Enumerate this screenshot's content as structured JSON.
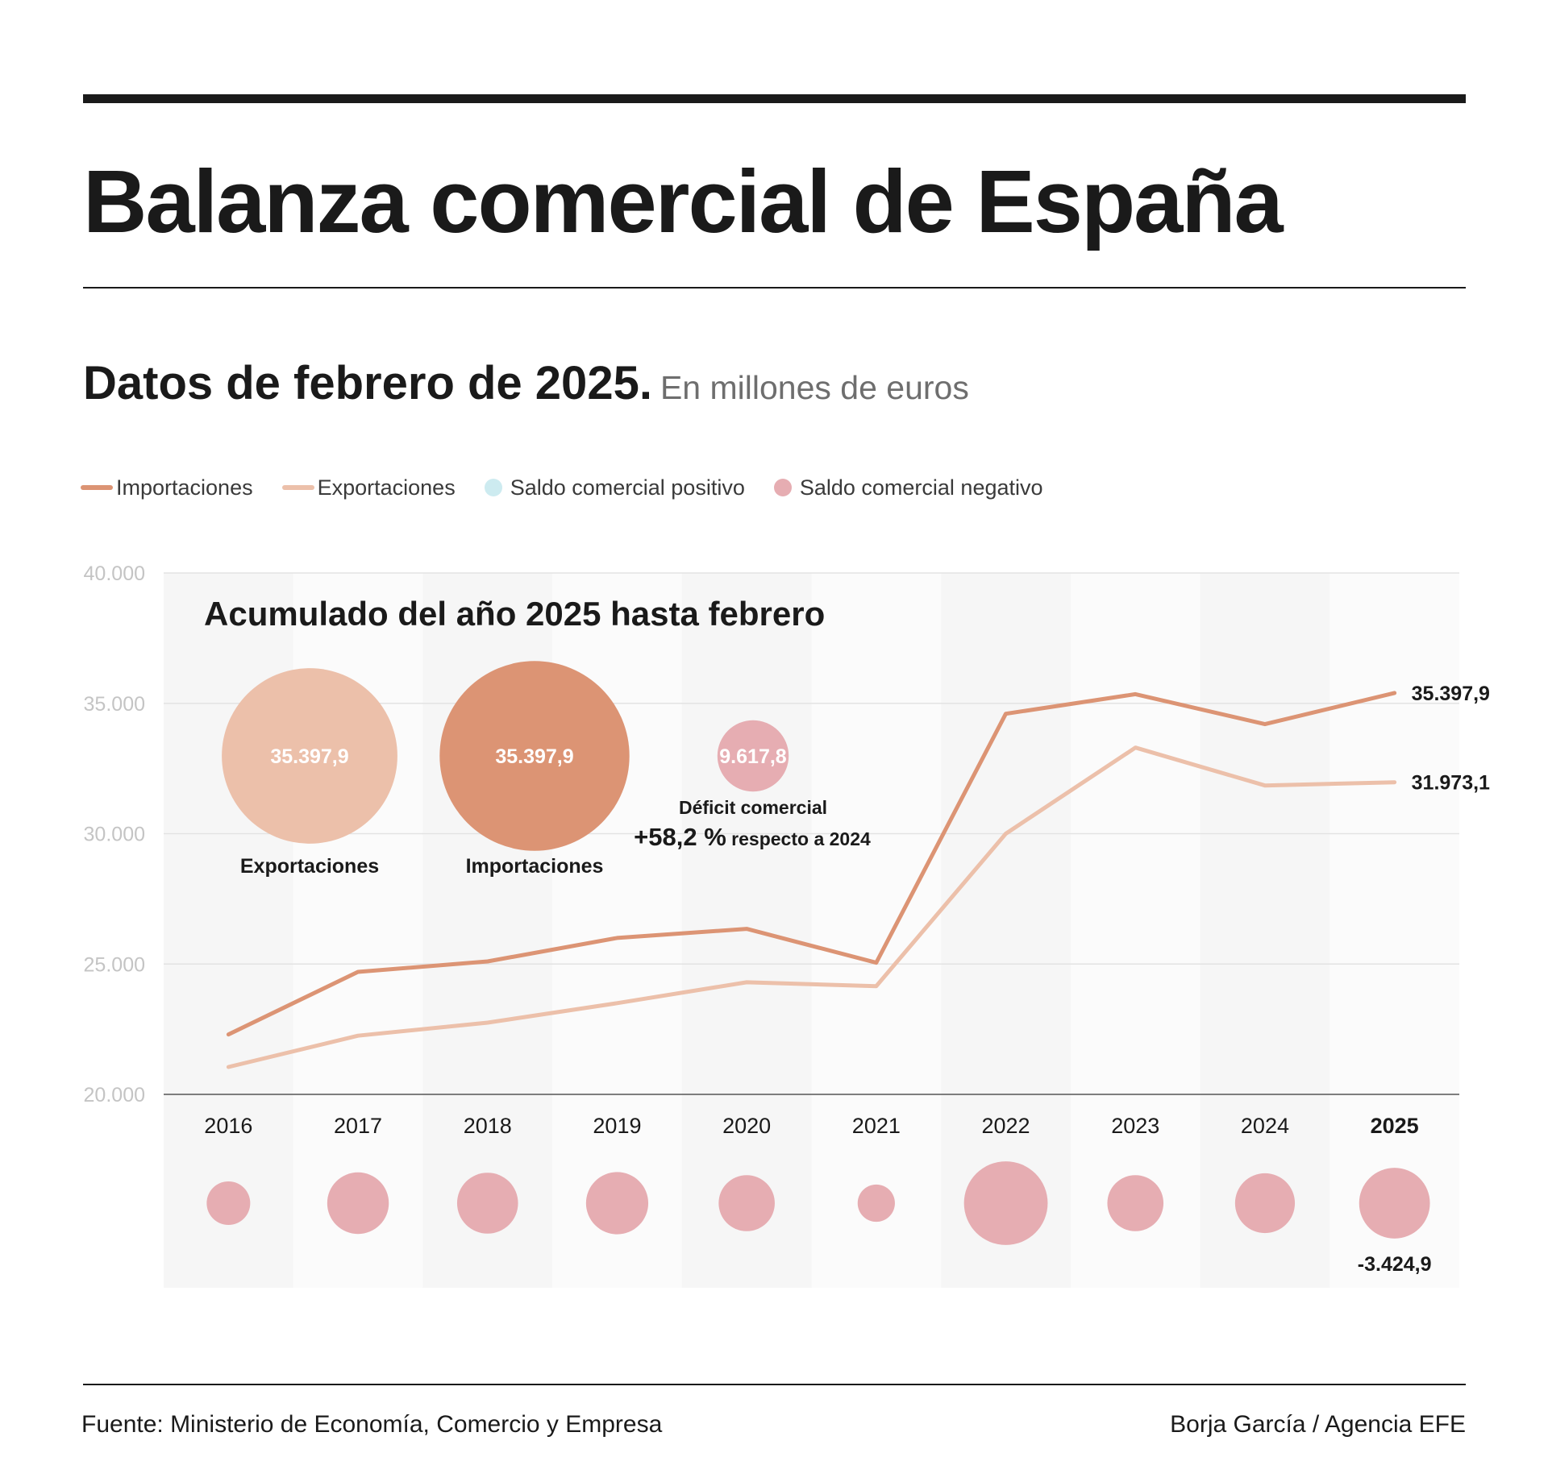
{
  "title": "Balanza comercial de España",
  "subtitle": "Datos de febrero de 2025.",
  "units": "En millones de euros",
  "legend": [
    {
      "label": "Importaciones",
      "color": "#dc9474",
      "kind": "line"
    },
    {
      "label": "Exportaciones",
      "color": "#ecc0aa",
      "kind": "line"
    },
    {
      "label": "Saldo comercial positivo",
      "color": "#cdebf0",
      "kind": "dot"
    },
    {
      "label": "Saldo comercial negativo",
      "color": "#e6adb2",
      "kind": "dot"
    }
  ],
  "summary": {
    "title": "Acumulado del año 2025 hasta febrero",
    "exports": {
      "value": 35397.9,
      "display": "35.397,9",
      "label": "Exportaciones",
      "color": "#ecc0aa"
    },
    "imports": {
      "value": 35397.9,
      "display": "35.397,9",
      "label": "Importaciones",
      "color": "#dc9474"
    },
    "deficit": {
      "value": 9617.8,
      "display": "9.617,8",
      "label": "Déficit comercial",
      "change": "+58,2 %",
      "change_note": "respecto a 2024",
      "color": "#e6adb2"
    }
  },
  "chart_data": {
    "type": "line",
    "categories": [
      "2016",
      "2017",
      "2018",
      "2019",
      "2020",
      "2021",
      "2022",
      "2023",
      "2024",
      "2025"
    ],
    "highlight_category": "2025",
    "series": [
      {
        "name": "Importaciones",
        "color": "#dc9474",
        "values": [
          22300,
          24700,
          25100,
          26000,
          26350,
          25050,
          34600,
          35350,
          34200,
          35397.9
        ]
      },
      {
        "name": "Exportaciones",
        "color": "#ecc0aa",
        "values": [
          21050,
          22250,
          22750,
          23500,
          24300,
          24150,
          30000,
          33300,
          31850,
          31973.1
        ]
      }
    ],
    "end_labels": [
      "35.397,9",
      "31.973,1"
    ],
    "yticks": [
      20000,
      25000,
      30000,
      35000,
      40000
    ],
    "ytick_labels": [
      "20.000",
      "25.000",
      "30.000",
      "35.000",
      "40.000"
    ],
    "ylim": [
      20000,
      40000
    ],
    "grid": true,
    "balance": {
      "name": "Saldo comercial negativo",
      "color": "#e6adb2",
      "values": [
        -1300,
        -2600,
        -2550,
        -2650,
        -2150,
        -950,
        -4800,
        -2150,
        -2450,
        -3424.9
      ],
      "label_2025": "-3.424,9"
    }
  },
  "footer": {
    "source": "Fuente: Ministerio de Economía, Comercio y Empresa",
    "credit": "Borja García / Agencia EFE"
  }
}
